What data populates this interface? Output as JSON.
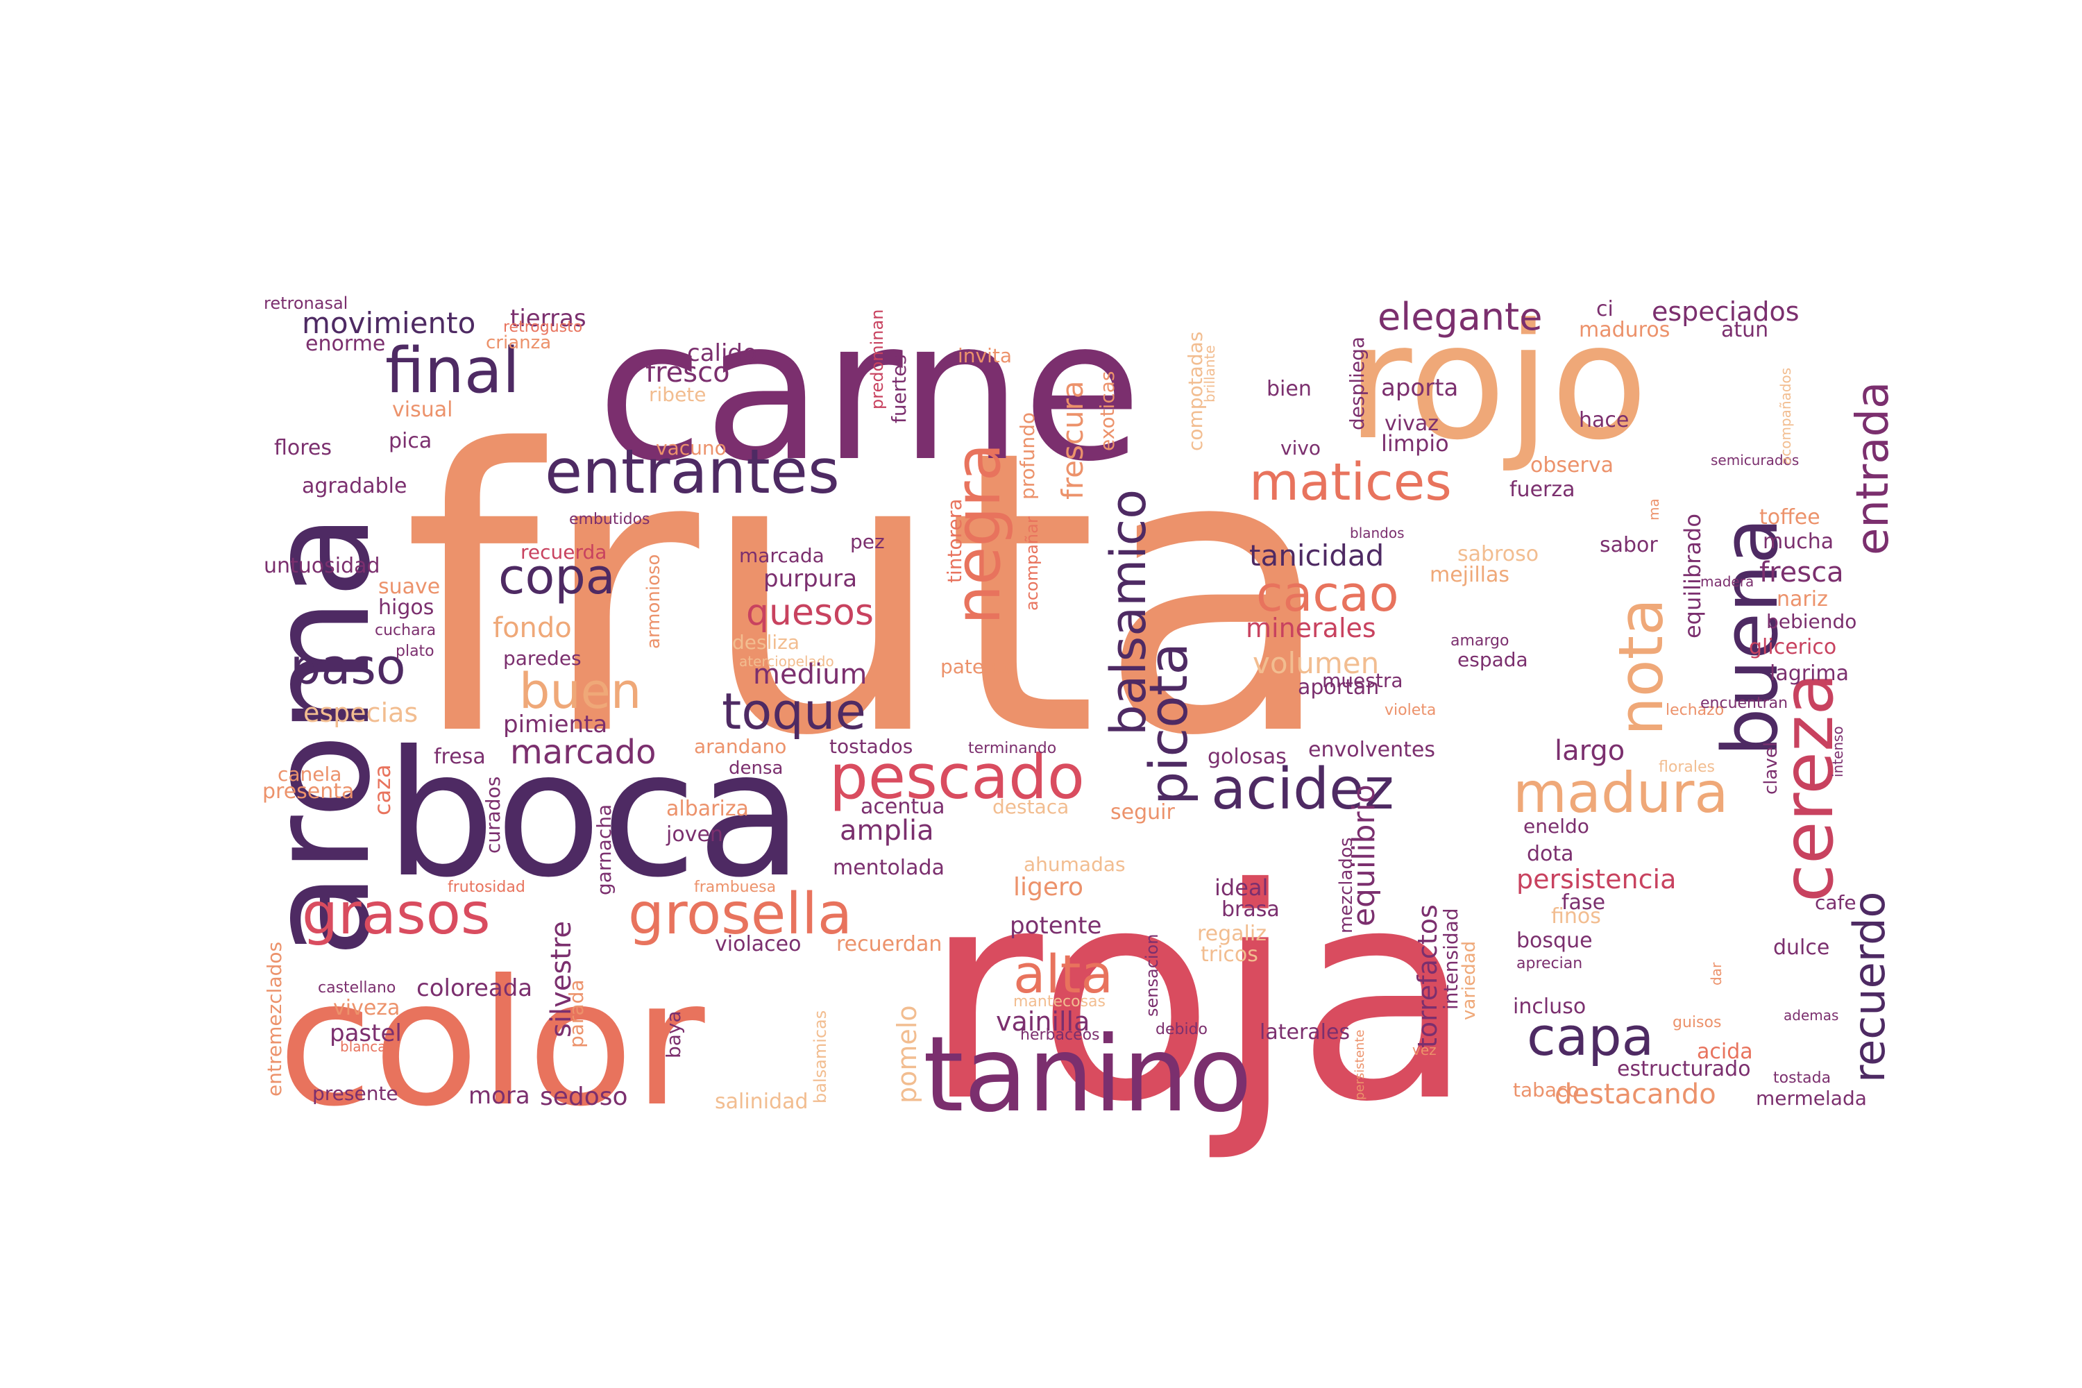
{
  "colors": {
    "dark_purple": "#4e2a63",
    "purple": "#7b2f6e",
    "magenta": "#9a3372",
    "rose": "#c8425f",
    "red": "#d94c5f",
    "coral": "#e8735d",
    "salmon": "#ec926b",
    "peach": "#efa878",
    "light_peach": "#f2bd90"
  },
  "words": [
    {
      "text": "fruta",
      "color": "salmon"
    },
    {
      "text": "roja",
      "color": "red"
    },
    {
      "text": "carne",
      "color": "purple"
    },
    {
      "text": "rojo",
      "color": "peach"
    },
    {
      "text": "aroma",
      "color": "dark_purple"
    },
    {
      "text": "boca",
      "color": "dark_purple"
    },
    {
      "text": "color",
      "color": "coral"
    },
    {
      "text": "tanino",
      "color": "purple"
    },
    {
      "text": "buena",
      "color": "dark_purple"
    },
    {
      "text": "cereza",
      "color": "rose"
    },
    {
      "text": "final",
      "color": "dark_purple"
    },
    {
      "text": "entrantes",
      "color": "dark_purple"
    },
    {
      "text": "negra",
      "color": "coral"
    },
    {
      "text": "balsamico",
      "color": "dark_purple"
    },
    {
      "text": "matices",
      "color": "coral"
    },
    {
      "text": "pescado",
      "color": "red"
    },
    {
      "text": "grasos",
      "color": "red"
    },
    {
      "text": "grosella",
      "color": "coral"
    },
    {
      "text": "picota",
      "color": "dark_purple"
    },
    {
      "text": "acidez",
      "color": "dark_purple"
    },
    {
      "text": "madura",
      "color": "peach"
    },
    {
      "text": "nota",
      "color": "peach"
    },
    {
      "text": "capa",
      "color": "dark_purple"
    },
    {
      "text": "alta",
      "color": "coral"
    },
    {
      "text": "recuerdo",
      "color": "dark_purple"
    },
    {
      "text": "entrada",
      "color": "purple"
    },
    {
      "text": "elegante",
      "color": "purple"
    },
    {
      "text": "copa",
      "color": "dark_purple"
    },
    {
      "text": "paso",
      "color": "dark_purple"
    },
    {
      "text": "buen",
      "color": "peach"
    },
    {
      "text": "toque",
      "color": "dark_purple"
    },
    {
      "text": "cacao",
      "color": "coral"
    },
    {
      "text": "quesos",
      "color": "rose"
    },
    {
      "text": "movimiento",
      "color": "dark_purple"
    },
    {
      "text": "tierras",
      "color": "purple"
    },
    {
      "text": "retronasal",
      "color": "purple"
    },
    {
      "text": "crianza",
      "color": "salmon"
    },
    {
      "text": "retrogusto",
      "color": "coral"
    },
    {
      "text": "enorme",
      "color": "purple"
    },
    {
      "text": "visual",
      "color": "salmon"
    },
    {
      "text": "pica",
      "color": "purple"
    },
    {
      "text": "flores",
      "color": "purple"
    },
    {
      "text": "agradable",
      "color": "purple"
    },
    {
      "text": "embutidos",
      "color": "purple"
    },
    {
      "text": "untuosidad",
      "color": "purple"
    },
    {
      "text": "recuerda",
      "color": "rose"
    },
    {
      "text": "suave",
      "color": "salmon"
    },
    {
      "text": "higos",
      "color": "purple"
    },
    {
      "text": "cuchara",
      "color": "purple"
    },
    {
      "text": "plato",
      "color": "purple"
    },
    {
      "text": "fondo",
      "color": "peach"
    },
    {
      "text": "especias",
      "color": "light_peach"
    },
    {
      "text": "paredes",
      "color": "purple"
    },
    {
      "text": "pimienta",
      "color": "purple"
    },
    {
      "text": "marcado",
      "color": "purple"
    },
    {
      "text": "canela",
      "color": "salmon"
    },
    {
      "text": "presenta",
      "color": "salmon"
    },
    {
      "text": "caza",
      "color": "coral"
    },
    {
      "text": "fresa",
      "color": "purple"
    },
    {
      "text": "curados",
      "color": "purple"
    },
    {
      "text": "garnacha",
      "color": "purple"
    },
    {
      "text": "frutosidad",
      "color": "coral"
    },
    {
      "text": "silvestre",
      "color": "purple"
    },
    {
      "text": "coloreada",
      "color": "purple"
    },
    {
      "text": "entremezclados",
      "color": "salmon"
    },
    {
      "text": "castellano",
      "color": "purple"
    },
    {
      "text": "viveza",
      "color": "salmon"
    },
    {
      "text": "pastel",
      "color": "purple"
    },
    {
      "text": "blancas",
      "color": "coral"
    },
    {
      "text": "presente",
      "color": "purple"
    },
    {
      "text": "parada",
      "color": "salmon"
    },
    {
      "text": "mora",
      "color": "purple"
    },
    {
      "text": "sedoso",
      "color": "purple"
    },
    {
      "text": "baya",
      "color": "purple"
    },
    {
      "text": "salinidad",
      "color": "light_peach"
    },
    {
      "text": "balsamicas",
      "color": "light_peach"
    },
    {
      "text": "pomelo",
      "color": "light_peach"
    },
    {
      "text": "calido",
      "color": "purple"
    },
    {
      "text": "fresco",
      "color": "purple"
    },
    {
      "text": "ribete",
      "color": "light_peach"
    },
    {
      "text": "vacuno",
      "color": "salmon"
    },
    {
      "text": "predominan",
      "color": "rose"
    },
    {
      "text": "fuertes",
      "color": "purple"
    },
    {
      "text": "invita",
      "color": "salmon"
    },
    {
      "text": "armonioso",
      "color": "salmon"
    },
    {
      "text": "marcada",
      "color": "purple"
    },
    {
      "text": "pez",
      "color": "purple"
    },
    {
      "text": "purpura",
      "color": "purple"
    },
    {
      "text": "desliza",
      "color": "light_peach"
    },
    {
      "text": "aterciopelado",
      "color": "light_peach"
    },
    {
      "text": "arandano",
      "color": "salmon"
    },
    {
      "text": "densa",
      "color": "purple"
    },
    {
      "text": "tostados",
      "color": "purple"
    },
    {
      "text": "medium",
      "color": "purple"
    },
    {
      "text": "albariza",
      "color": "salmon"
    },
    {
      "text": "joven",
      "color": "purple"
    },
    {
      "text": "acentua",
      "color": "purple"
    },
    {
      "text": "destaca",
      "color": "light_peach"
    },
    {
      "text": "amplia",
      "color": "purple"
    },
    {
      "text": "mentolada",
      "color": "purple"
    },
    {
      "text": "frambuesa",
      "color": "salmon"
    },
    {
      "text": "violaceo",
      "color": "purple"
    },
    {
      "text": "recuerdan",
      "color": "salmon"
    },
    {
      "text": "tintorera",
      "color": "coral"
    },
    {
      "text": "acompañar",
      "color": "coral"
    },
    {
      "text": "patente",
      "color": "salmon"
    },
    {
      "text": "terminando",
      "color": "purple"
    },
    {
      "text": "profundo",
      "color": "salmon"
    },
    {
      "text": "frescura",
      "color": "salmon"
    },
    {
      "text": "exoticas",
      "color": "salmon"
    },
    {
      "text": "compotadas",
      "color": "light_peach"
    },
    {
      "text": "brillante",
      "color": "light_peach"
    },
    {
      "text": "ligero",
      "color": "salmon"
    },
    {
      "text": "potente",
      "color": "purple"
    },
    {
      "text": "ahumadas",
      "color": "light_peach"
    },
    {
      "text": "sensacion",
      "color": "purple"
    },
    {
      "text": "vainilla",
      "color": "purple"
    },
    {
      "text": "mantecosas",
      "color": "light_peach"
    },
    {
      "text": "herbaceos",
      "color": "purple"
    },
    {
      "text": "debido",
      "color": "purple"
    },
    {
      "text": "seguir",
      "color": "salmon"
    },
    {
      "text": "golosas",
      "color": "purple"
    },
    {
      "text": "ideal",
      "color": "purple"
    },
    {
      "text": "brasa",
      "color": "purple"
    },
    {
      "text": "regaliz",
      "color": "light_peach"
    },
    {
      "text": "tricos",
      "color": "light_peach"
    },
    {
      "text": "bien",
      "color": "purple"
    },
    {
      "text": "despliega",
      "color": "purple"
    },
    {
      "text": "vivo",
      "color": "purple"
    },
    {
      "text": "aporta",
      "color": "purple"
    },
    {
      "text": "vivaz",
      "color": "purple"
    },
    {
      "text": "limpio",
      "color": "purple"
    },
    {
      "text": "tanicidad",
      "color": "dark_purple"
    },
    {
      "text": "minerales",
      "color": "rose"
    },
    {
      "text": "volumen",
      "color": "light_peach"
    },
    {
      "text": "muestra",
      "color": "purple"
    },
    {
      "text": "aportan",
      "color": "purple"
    },
    {
      "text": "envolventes",
      "color": "purple"
    },
    {
      "text": "equilibrio",
      "color": "purple"
    },
    {
      "text": "mezclados",
      "color": "purple"
    },
    {
      "text": "torrefactos",
      "color": "purple"
    },
    {
      "text": "intensidad",
      "color": "purple"
    },
    {
      "text": "variedad",
      "color": "peach"
    },
    {
      "text": "persistente",
      "color": "salmon"
    },
    {
      "text": "vez",
      "color": "salmon"
    },
    {
      "text": "laterales",
      "color": "purple"
    },
    {
      "text": "blandos",
      "color": "purple"
    },
    {
      "text": "sabroso",
      "color": "light_peach"
    },
    {
      "text": "mejillas",
      "color": "peach"
    },
    {
      "text": "amargo",
      "color": "purple"
    },
    {
      "text": "espada",
      "color": "purple"
    },
    {
      "text": "violeta",
      "color": "salmon"
    },
    {
      "text": "largo",
      "color": "purple"
    },
    {
      "text": "eneldo",
      "color": "purple"
    },
    {
      "text": "dota",
      "color": "purple"
    },
    {
      "text": "persistencia",
      "color": "rose"
    },
    {
      "text": "fase",
      "color": "purple"
    },
    {
      "text": "finos",
      "color": "light_peach"
    },
    {
      "text": "bosque",
      "color": "purple"
    },
    {
      "text": "aprecian",
      "color": "purple"
    },
    {
      "text": "incluso",
      "color": "purple"
    },
    {
      "text": "tabaco",
      "color": "salmon"
    },
    {
      "text": "estructurado",
      "color": "purple"
    },
    {
      "text": "destacando",
      "color": "salmon"
    },
    {
      "text": "acida",
      "color": "coral"
    },
    {
      "text": "guisos",
      "color": "salmon"
    },
    {
      "text": "ci",
      "color": "purple"
    },
    {
      "text": "especiados",
      "color": "purple"
    },
    {
      "text": "maduros",
      "color": "salmon"
    },
    {
      "text": "atun",
      "color": "purple"
    },
    {
      "text": "hace",
      "color": "purple"
    },
    {
      "text": "observa",
      "color": "salmon"
    },
    {
      "text": "fuerza",
      "color": "purple"
    },
    {
      "text": "semicurados",
      "color": "purple"
    },
    {
      "text": "acompañados",
      "color": "light_peach"
    },
    {
      "text": "equilibrado",
      "color": "purple"
    },
    {
      "text": "ma",
      "color": "salmon"
    },
    {
      "text": "sabor",
      "color": "purple"
    },
    {
      "text": "toffee",
      "color": "salmon"
    },
    {
      "text": "mucha",
      "color": "purple"
    },
    {
      "text": "madera",
      "color": "purple"
    },
    {
      "text": "fresca",
      "color": "purple"
    },
    {
      "text": "nariz",
      "color": "salmon"
    },
    {
      "text": "bebiendo",
      "color": "purple"
    },
    {
      "text": "glicerico",
      "color": "rose"
    },
    {
      "text": "lagrima",
      "color": "purple"
    },
    {
      "text": "lechazo",
      "color": "salmon"
    },
    {
      "text": "encuentran",
      "color": "purple"
    },
    {
      "text": "florales",
      "color": "light_peach"
    },
    {
      "text": "clavel",
      "color": "purple"
    },
    {
      "text": "intenso",
      "color": "purple"
    },
    {
      "text": "cafe",
      "color": "purple"
    },
    {
      "text": "dulce",
      "color": "purple"
    },
    {
      "text": "dar",
      "color": "salmon"
    },
    {
      "text": "ademas",
      "color": "purple"
    },
    {
      "text": "tostada",
      "color": "purple"
    },
    {
      "text": "mermelada",
      "color": "purple"
    }
  ]
}
